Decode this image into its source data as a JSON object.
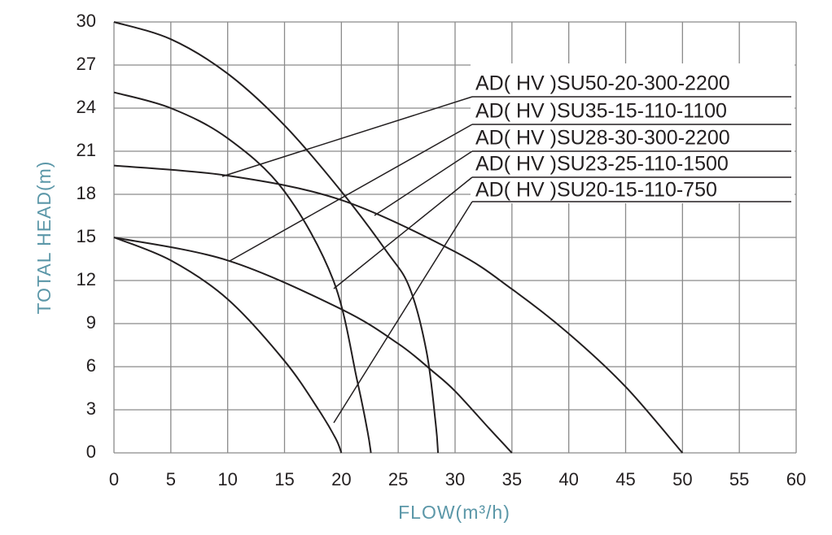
{
  "chart_data": {
    "type": "line",
    "x_label": "FLOW(m³/h)",
    "y_label": "TOTAL HEAD(m)",
    "xlim": [
      0,
      60
    ],
    "xticks": [
      0,
      5,
      10,
      15,
      20,
      25,
      30,
      35,
      40,
      45,
      50,
      55,
      60
    ],
    "ylim": [
      0,
      30
    ],
    "yticks": [
      0,
      3,
      6,
      9,
      12,
      15,
      18,
      21,
      24,
      27,
      30
    ],
    "grid": true,
    "series": [
      {
        "name": "AD( HV )SU50-20-300-2200",
        "color": "#231f20",
        "x": [
          0,
          10,
          20,
          30,
          35,
          40,
          45,
          50
        ],
        "values": [
          20,
          19.3,
          17.6,
          14,
          11.4,
          8.3,
          4.6,
          0
        ]
      },
      {
        "name": "AD( HV )SU35-15-110-1100",
        "color": "#231f20",
        "x": [
          0,
          10,
          20,
          25,
          28,
          30,
          33,
          35
        ],
        "values": [
          15,
          13.4,
          10,
          7.6,
          5.7,
          4.3,
          1.7,
          0
        ]
      },
      {
        "name": "AD( HV )SU28-30-300-2200",
        "color": "#231f20",
        "x": [
          0,
          5,
          10,
          15,
          20,
          24,
          26,
          27.5,
          28.3,
          28.5
        ],
        "values": [
          30,
          28.8,
          26.4,
          22.8,
          18.2,
          14,
          11.5,
          7,
          2,
          0
        ]
      },
      {
        "name": "AD( HV )SU23-25-110-1500",
        "color": "#231f20",
        "x": [
          0,
          5,
          10,
          15,
          19.3,
          21.4,
          22.3,
          22.6
        ],
        "values": [
          25.1,
          24,
          21.9,
          18.2,
          12,
          5,
          1.5,
          0
        ]
      },
      {
        "name": "AD( HV )SU20-15-110-750",
        "color": "#231f20",
        "x": [
          0,
          5,
          10,
          15,
          18,
          19.5,
          20
        ],
        "values": [
          15,
          13.4,
          10.7,
          6.4,
          3,
          1,
          0
        ]
      }
    ]
  }
}
